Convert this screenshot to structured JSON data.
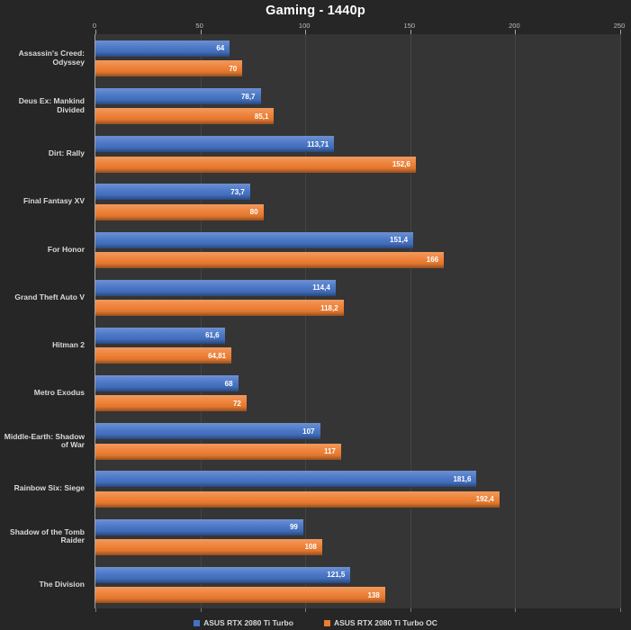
{
  "chart_data": {
    "type": "bar",
    "orientation": "horizontal",
    "title": "Gaming - 1440p",
    "categories": [
      "Assassin's Creed: Odyssey",
      "Deus Ex: Mankind Divided",
      "Dirt: Rally",
      "Final Fantasy XV",
      "For Honor",
      "Grand Theft Auto V",
      "Hitman 2",
      "Metro Exodus",
      "Middle-Earth: Shadow of War",
      "Rainbow Six: Siege",
      "Shadow of the Tomb Raider",
      "The Division"
    ],
    "series": [
      {
        "name": "ASUS RTX 2080 Ti Turbo",
        "color": "#4472c4",
        "values": [
          64,
          78.7,
          113.71,
          73.7,
          151.4,
          114.4,
          61.6,
          68,
          107,
          181.6,
          99,
          121.5
        ],
        "labels": [
          "64",
          "78,7",
          "113,71",
          "73,7",
          "151,4",
          "114,4",
          "61,6",
          "68",
          "107",
          "181,6",
          "99",
          "121,5"
        ]
      },
      {
        "name": "ASUS RTX 2080 Ti Turbo OC",
        "color": "#ed7d31",
        "values": [
          70,
          85.1,
          152.6,
          80,
          166,
          118.2,
          64.81,
          72,
          117,
          192.4,
          108,
          138
        ],
        "labels": [
          "70",
          "85,1",
          "152,6",
          "80",
          "166",
          "118,2",
          "64,81",
          "72",
          "117",
          "192,4",
          "108",
          "138"
        ]
      }
    ],
    "x_axis": {
      "min": 0,
      "max": 250,
      "ticks": [
        0,
        50,
        100,
        150,
        200,
        250
      ]
    },
    "legend": {
      "position": "bottom"
    },
    "grid": true,
    "colors": {
      "background": "#262626",
      "plot_background": "#353535",
      "gridline": "#454545",
      "axis_line": "#a6a6a6",
      "tick_label": "#bfbfbf",
      "category_label": "#d9d9d9",
      "value_label": "#ffffff",
      "title": "#ffffff"
    }
  }
}
